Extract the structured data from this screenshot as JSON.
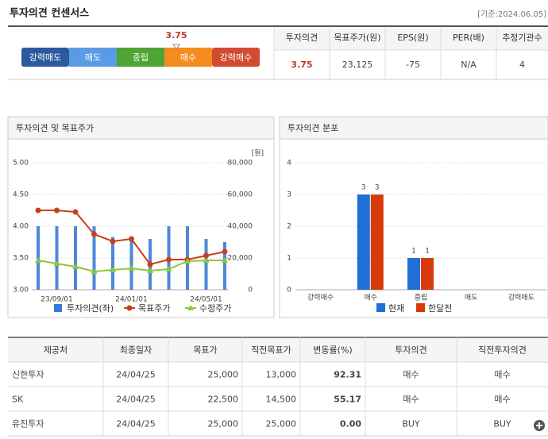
{
  "header": {
    "title": "투자의견 컨센서스",
    "date": "[기준:2024.06.05]"
  },
  "consensus": {
    "scale": [
      "강력매도",
      "매도",
      "중립",
      "매수",
      "강력매수"
    ],
    "colors": [
      "#2d5a9e",
      "#5b9be6",
      "#4ea435",
      "#f68b1f",
      "#d24a2f"
    ],
    "score": 3.75
  },
  "summary": {
    "headers": [
      "투자의견",
      "목표주가(원)",
      "EPS(원)",
      "PER(배)",
      "추정기관수"
    ],
    "values": [
      "3.75",
      "23,125",
      "-75",
      "N/A",
      "4"
    ]
  },
  "chart_data": [
    {
      "type": "combo",
      "title": "투자의견 및 목표주가",
      "categories": [
        null,
        "23/09/01",
        null,
        null,
        null,
        "24/01/01",
        null,
        null,
        null,
        "24/05/01",
        null
      ],
      "ylim": [
        3,
        5
      ],
      "yticks": [
        {
          "value": 3,
          "label": "3.00"
        },
        {
          "value": 3.5,
          "label": "3.50"
        },
        {
          "value": 4,
          "label": "4.00"
        },
        {
          "value": 4.5,
          "label": "4.50"
        },
        {
          "value": 5,
          "label": "5.00"
        }
      ],
      "y2lim": [
        0,
        80000
      ],
      "y2ticks": [
        0,
        {
          "value": 20000,
          "label": "20,000"
        },
        {
          "value": 40000,
          "label": "40,000"
        },
        {
          "value": 60000,
          "label": "60,000"
        },
        {
          "value": 80000,
          "label": "80,000"
        }
      ],
      "y2label": "[원]",
      "grid": true,
      "series": [
        {
          "name": "투자의견(좌)",
          "type": "bar",
          "color": "#3a7bd5",
          "values": [
            4,
            4,
            4,
            4,
            3.83,
            3.83,
            3.8,
            4,
            4,
            3.8,
            3.75
          ]
        },
        {
          "name": "목표주가",
          "type": "line",
          "axis": "y2",
          "color": "#c8401c",
          "values": [
            50000,
            50000,
            49000,
            35000,
            30500,
            32000,
            16000,
            19000,
            19000,
            21500,
            24000
          ]
        },
        {
          "name": "수정주가",
          "type": "line",
          "axis": "y2",
          "color": "#8cc63f",
          "values": [
            18500,
            16500,
            14500,
            11500,
            12500,
            13500,
            12000,
            13000,
            18000,
            18500,
            18500
          ]
        }
      ]
    },
    {
      "type": "bar",
      "title": "투자의견 분포",
      "categories": [
        "강력매수",
        "매수",
        "중립",
        "매도",
        "강력매도"
      ],
      "ylim": [
        0,
        4
      ],
      "yticks": [
        0,
        1,
        2,
        3,
        4
      ],
      "grid": true,
      "series": [
        {
          "name": "현재",
          "color": "#1f6fd6",
          "values": [
            0,
            3,
            1,
            0,
            0
          ]
        },
        {
          "name": "한달전",
          "color": "#d83b0b",
          "values": [
            0,
            3,
            1,
            0,
            0
          ]
        }
      ]
    }
  ],
  "table": {
    "headers": [
      "제공처",
      "최종일자",
      "목표가",
      "직전목표가",
      "변동률(%)",
      "투자의견",
      "직전투자의견"
    ],
    "rows": [
      [
        "신한투자",
        "24/04/25",
        "25,000",
        "13,000",
        "92.31",
        "매수",
        "매수"
      ],
      [
        "SK",
        "24/04/25",
        "22,500",
        "14,500",
        "55.17",
        "매수",
        "매수"
      ],
      [
        "유진투자",
        "24/04/25",
        "25,000",
        "25,000",
        "0.00",
        "BUY",
        "BUY"
      ]
    ]
  }
}
